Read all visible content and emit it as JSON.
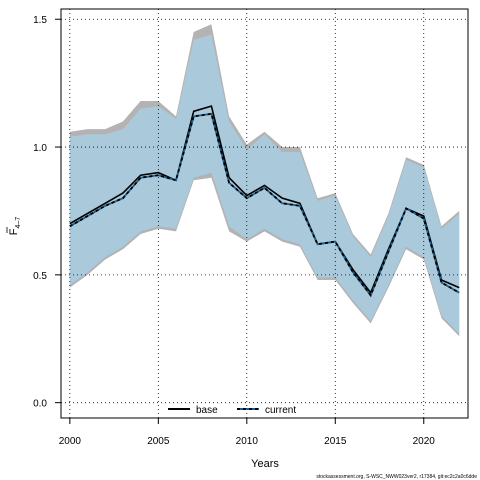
{
  "chart_data": {
    "type": "line",
    "xlabel": "Years",
    "ylabel_main": "F",
    "ylabel_sub": "4–7",
    "xlim": [
      1999.5,
      2022.5
    ],
    "ylim": [
      -0.06,
      1.54
    ],
    "xticks": [
      2000,
      2005,
      2010,
      2015,
      2020
    ],
    "yticks": [
      0.0,
      0.5,
      1.0,
      1.5
    ],
    "ytick_labels": [
      "0.0",
      "0.5",
      "1.0",
      "1.5"
    ],
    "grid": true,
    "legend_placement": "bottom",
    "x": [
      2000,
      2001,
      2002,
      2003,
      2004,
      2005,
      2006,
      2007,
      2008,
      2009,
      2010,
      2011,
      2012,
      2013,
      2014,
      2015,
      2016,
      2017,
      2018,
      2019,
      2020,
      2021,
      2022
    ],
    "series": [
      {
        "name": "base",
        "color": "#000000",
        "line_style": "solid",
        "band_color": "#b3b3b3",
        "values": [
          0.7,
          0.74,
          0.78,
          0.82,
          0.89,
          0.9,
          0.87,
          1.14,
          1.16,
          0.88,
          0.81,
          0.85,
          0.8,
          0.78,
          0.62,
          0.63,
          0.52,
          0.43,
          0.6,
          0.76,
          0.73,
          0.48,
          0.45
        ],
        "lower": [
          0.45,
          0.5,
          0.56,
          0.6,
          0.66,
          0.68,
          0.67,
          0.87,
          0.88,
          0.67,
          0.63,
          0.67,
          0.63,
          0.61,
          0.48,
          0.48,
          0.39,
          0.31,
          0.45,
          0.6,
          0.56,
          0.33,
          0.26
        ],
        "upper": [
          1.06,
          1.07,
          1.07,
          1.1,
          1.18,
          1.18,
          1.12,
          1.45,
          1.48,
          1.12,
          1.01,
          1.06,
          1.0,
          1.0,
          0.8,
          0.82,
          0.66,
          0.58,
          0.74,
          0.96,
          0.93,
          0.69,
          0.75
        ]
      },
      {
        "name": "current",
        "color": "#1f5f8b",
        "line_style": "dashed",
        "band_color": "#a8cde0",
        "values": [
          0.69,
          0.73,
          0.77,
          0.8,
          0.88,
          0.89,
          0.87,
          1.12,
          1.13,
          0.86,
          0.8,
          0.84,
          0.78,
          0.77,
          0.62,
          0.63,
          0.51,
          0.42,
          0.59,
          0.76,
          0.72,
          0.47,
          0.43
        ],
        "lower": [
          0.46,
          0.51,
          0.57,
          0.61,
          0.67,
          0.69,
          0.68,
          0.88,
          0.9,
          0.69,
          0.64,
          0.68,
          0.64,
          0.62,
          0.49,
          0.49,
          0.4,
          0.32,
          0.46,
          0.61,
          0.57,
          0.34,
          0.27
        ],
        "upper": [
          1.04,
          1.05,
          1.05,
          1.07,
          1.15,
          1.16,
          1.11,
          1.42,
          1.44,
          1.1,
          0.99,
          1.05,
          0.98,
          0.98,
          0.79,
          0.81,
          0.65,
          0.57,
          0.73,
          0.95,
          0.92,
          0.68,
          0.74
        ]
      }
    ],
    "footer": "stockassessment.org, S-WSC_NWW023ver2, r17384, git:ec2c2a0c6dde"
  }
}
